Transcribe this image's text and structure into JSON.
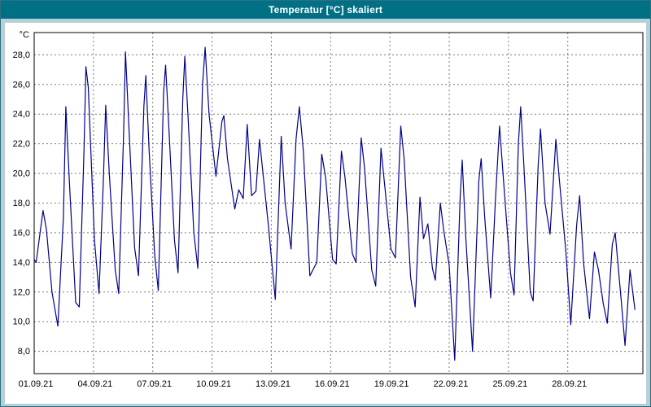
{
  "window": {
    "title": "Temperatur [°C] skaliert"
  },
  "colors": {
    "titlebar_bg": "#007085",
    "frame_bg": "#b9cfd8",
    "plot_bg": "#ffffff",
    "line": "#00008b",
    "grid": "#7a7a7a",
    "plot_border": "#000000"
  },
  "chart_data": {
    "type": "line",
    "title": "Temperatur [°C] skaliert",
    "xlabel": "",
    "ylabel": "°C",
    "xlim": [
      0,
      30.8
    ],
    "ylim": [
      6.5,
      29.5
    ],
    "grid": true,
    "legend": "none",
    "x_tick_values": [
      0,
      3,
      6,
      9,
      12,
      15,
      18,
      21,
      24,
      27
    ],
    "x_tick_labels": [
      "01.09.21",
      "04.09.21",
      "07.09.21",
      "10.09.21",
      "13.09.21",
      "16.09.21",
      "19.09.21",
      "22.09.21",
      "25.09.21",
      "28.09.21"
    ],
    "y_tick_values": [
      8,
      10,
      12,
      14,
      16,
      18,
      20,
      22,
      24,
      26,
      28
    ],
    "y_tick_labels": [
      "8,0",
      "10,0",
      "12,0",
      "14,0",
      "16,0",
      "18,0",
      "20,0",
      "22,0",
      "24,0",
      "26,0",
      "28,0"
    ],
    "series": [
      {
        "name": "Temperatur",
        "points": [
          [
            0.0,
            14.2
          ],
          [
            0.1,
            14.0
          ],
          [
            0.45,
            17.5
          ],
          [
            0.62,
            16.2
          ],
          [
            0.9,
            12.0
          ],
          [
            1.2,
            9.7
          ],
          [
            1.48,
            17.0
          ],
          [
            1.6,
            24.5
          ],
          [
            1.78,
            19.5
          ],
          [
            2.1,
            11.3
          ],
          [
            2.28,
            11.0
          ],
          [
            2.52,
            21.5
          ],
          [
            2.62,
            27.2
          ],
          [
            2.74,
            25.8
          ],
          [
            3.05,
            15.5
          ],
          [
            3.28,
            11.9
          ],
          [
            3.5,
            19.5
          ],
          [
            3.62,
            24.6
          ],
          [
            3.8,
            20.0
          ],
          [
            4.1,
            13.5
          ],
          [
            4.28,
            11.9
          ],
          [
            4.52,
            22.5
          ],
          [
            4.62,
            28.2
          ],
          [
            4.78,
            23.5
          ],
          [
            5.08,
            15.0
          ],
          [
            5.28,
            13.1
          ],
          [
            5.55,
            24.5
          ],
          [
            5.65,
            26.6
          ],
          [
            5.82,
            21.5
          ],
          [
            6.1,
            14.5
          ],
          [
            6.28,
            12.1
          ],
          [
            6.55,
            25.5
          ],
          [
            6.65,
            27.3
          ],
          [
            6.82,
            23.0
          ],
          [
            7.1,
            15.5
          ],
          [
            7.28,
            13.3
          ],
          [
            7.52,
            25.0
          ],
          [
            7.62,
            27.9
          ],
          [
            7.8,
            23.5
          ],
          [
            8.08,
            16.0
          ],
          [
            8.28,
            13.6
          ],
          [
            8.52,
            26.0
          ],
          [
            8.65,
            28.5
          ],
          [
            8.85,
            24.0
          ],
          [
            9.2,
            19.8
          ],
          [
            9.5,
            23.5
          ],
          [
            9.6,
            23.9
          ],
          [
            9.78,
            21.0
          ],
          [
            10.15,
            17.6
          ],
          [
            10.35,
            18.9
          ],
          [
            10.58,
            18.3
          ],
          [
            10.78,
            23.3
          ],
          [
            11.0,
            18.5
          ],
          [
            11.22,
            18.8
          ],
          [
            11.4,
            22.3
          ],
          [
            11.58,
            20.0
          ],
          [
            11.85,
            16.5
          ],
          [
            12.2,
            11.5
          ],
          [
            12.5,
            22.5
          ],
          [
            12.7,
            18.0
          ],
          [
            13.0,
            14.9
          ],
          [
            13.25,
            22.3
          ],
          [
            13.42,
            24.5
          ],
          [
            13.62,
            21.5
          ],
          [
            13.95,
            13.1
          ],
          [
            14.3,
            14.0
          ],
          [
            14.55,
            21.3
          ],
          [
            14.75,
            19.7
          ],
          [
            15.1,
            14.2
          ],
          [
            15.28,
            13.9
          ],
          [
            15.55,
            21.5
          ],
          [
            15.72,
            19.8
          ],
          [
            16.1,
            14.6
          ],
          [
            16.28,
            14.0
          ],
          [
            16.55,
            22.4
          ],
          [
            16.72,
            20.3
          ],
          [
            17.08,
            13.5
          ],
          [
            17.28,
            12.4
          ],
          [
            17.55,
            21.7
          ],
          [
            17.75,
            19.0
          ],
          [
            18.05,
            14.9
          ],
          [
            18.28,
            14.3
          ],
          [
            18.55,
            23.2
          ],
          [
            18.72,
            21.0
          ],
          [
            19.05,
            13.0
          ],
          [
            19.28,
            11.0
          ],
          [
            19.52,
            18.4
          ],
          [
            19.7,
            15.6
          ],
          [
            19.92,
            16.6
          ],
          [
            20.15,
            13.6
          ],
          [
            20.3,
            12.8
          ],
          [
            20.55,
            18.0
          ],
          [
            20.72,
            16.2
          ],
          [
            21.0,
            13.8
          ],
          [
            21.28,
            7.4
          ],
          [
            21.55,
            18.3
          ],
          [
            21.66,
            20.9
          ],
          [
            21.85,
            15.5
          ],
          [
            22.18,
            8.0
          ],
          [
            22.5,
            19.5
          ],
          [
            22.62,
            21.0
          ],
          [
            22.8,
            17.0
          ],
          [
            23.1,
            11.6
          ],
          [
            23.35,
            18.5
          ],
          [
            23.55,
            23.2
          ],
          [
            23.75,
            19.5
          ],
          [
            24.1,
            13.3
          ],
          [
            24.28,
            11.8
          ],
          [
            24.5,
            22.0
          ],
          [
            24.62,
            24.5
          ],
          [
            24.8,
            20.0
          ],
          [
            25.1,
            12.0
          ],
          [
            25.25,
            11.4
          ],
          [
            25.5,
            20.5
          ],
          [
            25.62,
            23.0
          ],
          [
            25.85,
            18.0
          ],
          [
            26.1,
            15.9
          ],
          [
            26.4,
            22.3
          ],
          [
            26.58,
            19.5
          ],
          [
            26.9,
            14.8
          ],
          [
            27.15,
            9.8
          ],
          [
            27.45,
            16.5
          ],
          [
            27.6,
            18.5
          ],
          [
            27.8,
            14.0
          ],
          [
            28.1,
            10.2
          ],
          [
            28.35,
            14.7
          ],
          [
            28.55,
            13.5
          ],
          [
            28.8,
            11.2
          ],
          [
            29.0,
            9.9
          ],
          [
            29.25,
            15.2
          ],
          [
            29.4,
            16.0
          ],
          [
            29.7,
            11.5
          ],
          [
            29.9,
            8.4
          ],
          [
            30.15,
            13.5
          ],
          [
            30.4,
            10.8
          ]
        ]
      }
    ]
  }
}
